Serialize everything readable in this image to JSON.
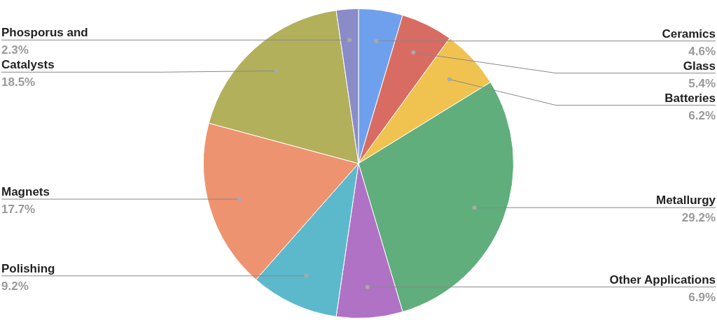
{
  "chart_data": {
    "type": "pie",
    "categories": [
      "Ceramics",
      "Glass",
      "Batteries",
      "Metallurgy",
      "Other Applications",
      "Polishing",
      "Magnets",
      "Catalysts",
      "Phosporus and"
    ],
    "values": [
      4.6,
      5.4,
      6.2,
      29.2,
      6.9,
      9.2,
      17.7,
      18.5,
      2.3
    ],
    "value_labels": [
      "4.6%",
      "5.4%",
      "6.2%",
      "29.2%",
      "6.9%",
      "9.2%",
      "17.7%",
      "18.5%",
      "2.3%"
    ],
    "colors": [
      "#6fa0ee",
      "#d86c62",
      "#f0c350",
      "#5fae7c",
      "#b072c4",
      "#5cb9cc",
      "#ee9370",
      "#b2b05a",
      "#8a8bc9"
    ],
    "legend": false
  }
}
